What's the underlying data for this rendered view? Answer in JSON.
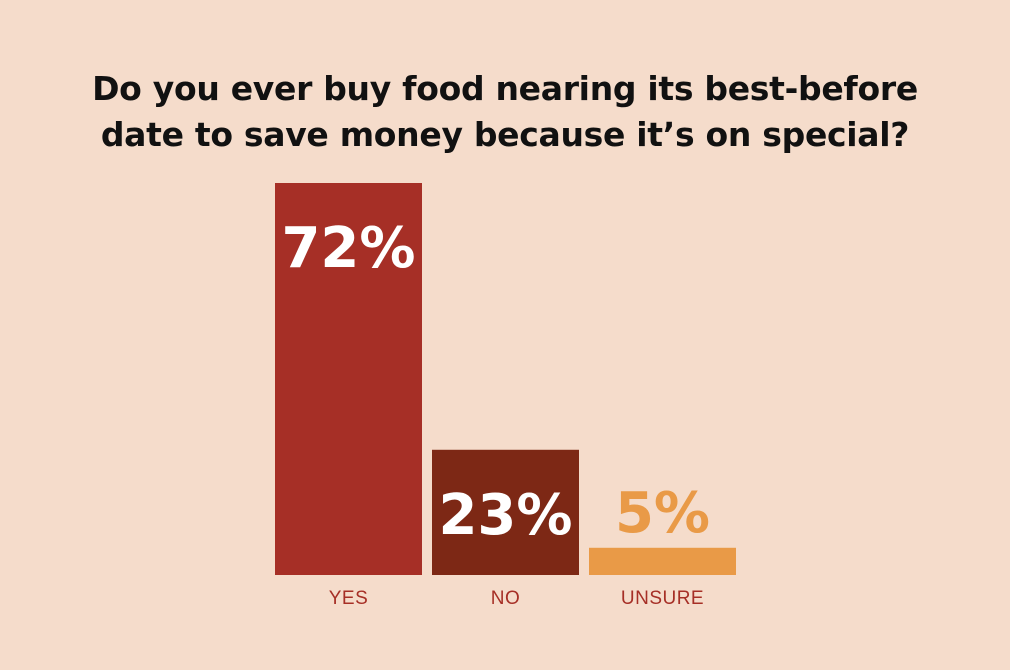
{
  "title_lines": [
    "Do you ever buy food nearing its best-before",
    "date to save money because it’s on special?"
  ],
  "colors": {
    "background": "#f5dccb",
    "title": "#111111",
    "category_label": "#a62f26"
  },
  "chart_data": {
    "type": "bar",
    "title": "Do you ever buy food nearing its best-before date to save money because it’s on special?",
    "xlabel": "",
    "ylabel": "",
    "categories": [
      "YES",
      "NO",
      "UNSURE"
    ],
    "values": [
      72,
      23,
      5
    ],
    "value_labels": [
      "72%",
      "23%",
      "5%"
    ],
    "bar_colors": [
      "#a62f26",
      "#7d2815",
      "#e99a47"
    ],
    "value_label_colors": [
      "#ffffff",
      "#ffffff",
      "#e99a47"
    ],
    "value_label_position": [
      "inside",
      "inside",
      "above"
    ],
    "ylim": [
      0,
      72
    ],
    "grid": false,
    "legend": "none"
  }
}
